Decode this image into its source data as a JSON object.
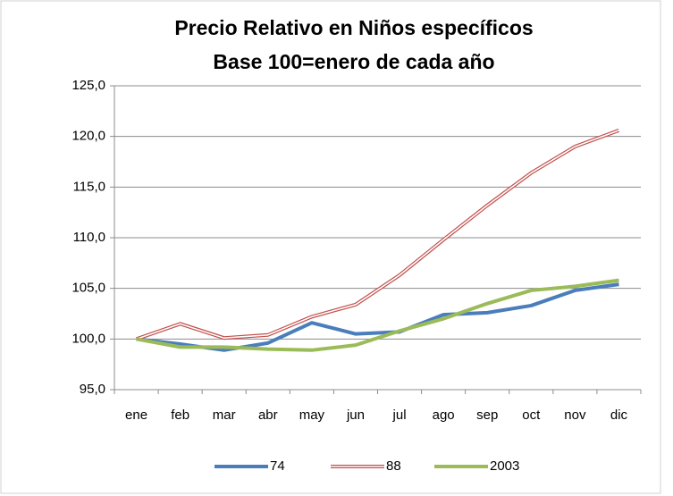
{
  "chart_data": {
    "type": "line",
    "title": [
      "Precio Relativo en Niños  específicos",
      "Base 100=enero de cada año"
    ],
    "categories": [
      "ene",
      "feb",
      "mar",
      "abr",
      "may",
      "jun",
      "jul",
      "ago",
      "sep",
      "oct",
      "nov",
      "dic"
    ],
    "series": [
      {
        "name": "74",
        "color": "#4a7ebb",
        "style": "solid",
        "values": [
          100,
          99.5,
          98.9,
          99.6,
          101.6,
          100.5,
          100.7,
          102.4,
          102.6,
          103.3,
          104.8,
          105.4
        ]
      },
      {
        "name": "88",
        "color": "#c0504d",
        "style": "double",
        "values": [
          100,
          101.5,
          100.1,
          100.4,
          102.2,
          103.4,
          106.3,
          109.8,
          113.2,
          116.4,
          119.0,
          120.6
        ]
      },
      {
        "name": "2003",
        "color": "#9bbb59",
        "style": "solid",
        "values": [
          100,
          99.2,
          99.2,
          99.0,
          98.9,
          99.4,
          100.8,
          102.0,
          103.5,
          104.8,
          105.2,
          105.8
        ]
      }
    ],
    "ylim": [
      95,
      125
    ],
    "yticks": [
      {
        "value": 95,
        "label": "95,0"
      },
      {
        "value": 100,
        "label": "100,0"
      },
      {
        "value": 105,
        "label": "105,0"
      },
      {
        "value": 110,
        "label": "110,0"
      },
      {
        "value": 115,
        "label": "115,0"
      },
      {
        "value": 120,
        "label": "120,0"
      },
      {
        "value": 125,
        "label": "125,0"
      }
    ],
    "grid": true,
    "legend": "bottom"
  }
}
